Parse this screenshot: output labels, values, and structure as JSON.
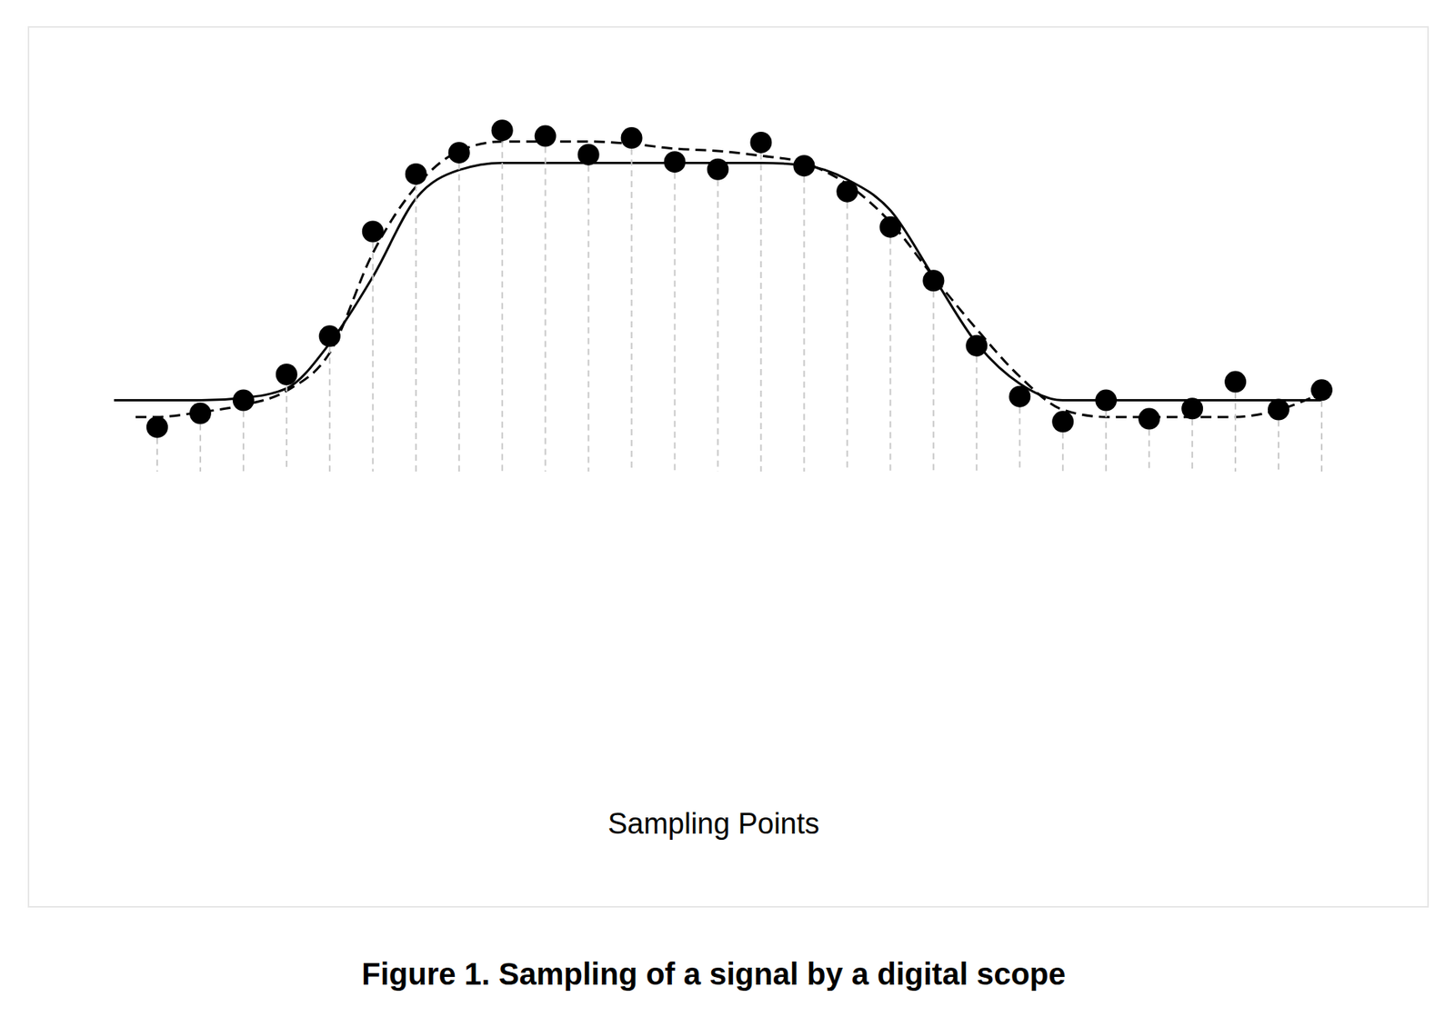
{
  "caption": "Figure 1. Sampling of a signal by a digital scope",
  "label": "Sampling Points",
  "chart_data": {
    "type": "line",
    "xlim": [
      -1.5,
      27.5
    ],
    "ylim": [
      -30,
      130
    ],
    "tick_labels": false,
    "grid": false,
    "series": [
      {
        "type": "line",
        "line_style": "solid",
        "color": "#000000",
        "x": [
          -1,
          0,
          1,
          2,
          3,
          4,
          5,
          6,
          7,
          8,
          9,
          10,
          11,
          12,
          13,
          14,
          15,
          16,
          17,
          18,
          19,
          20,
          21,
          22,
          23,
          24,
          25,
          26,
          27
        ],
        "values": [
          0,
          0,
          0,
          1,
          5,
          24,
          52,
          85,
          97,
          100,
          100,
          100,
          100,
          100,
          100,
          100,
          99,
          93,
          80,
          52,
          24,
          7,
          0,
          0,
          0,
          0,
          0,
          0,
          0
        ]
      },
      {
        "type": "line",
        "line_style": "dashed",
        "color": "#000000",
        "x": [
          -0.5,
          0,
          1,
          2,
          3,
          4,
          5,
          6,
          7,
          8,
          9,
          10,
          11,
          12,
          13,
          14,
          15,
          16,
          17,
          18,
          19,
          20,
          21,
          22,
          23,
          24,
          25,
          26,
          27
        ],
        "values": [
          -7,
          -7,
          -5,
          -2,
          4,
          20,
          62,
          90,
          105,
          109,
          109,
          109,
          108,
          106,
          105,
          103,
          100,
          91,
          75,
          52,
          30,
          10,
          -4,
          -7,
          -7,
          -7,
          -7,
          -4,
          3
        ]
      },
      {
        "type": "scatter",
        "marker": "circle",
        "color": "#000000",
        "x": [
          0,
          1,
          2,
          3,
          4,
          5,
          6,
          7,
          8,
          9,
          10,
          11,
          12,
          13,
          14,
          15,
          16,
          17,
          18,
          19,
          20,
          21,
          22,
          23,
          24,
          25,
          26,
          27
        ],
        "values": [
          -11.3,
          -5.5,
          0,
          10.9,
          27,
          71.1,
          95.3,
          104.3,
          113.7,
          111.3,
          103.5,
          110.5,
          100.4,
          97.3,
          108.6,
          98.8,
          87.9,
          73,
          50.4,
          23,
          1.6,
          -9,
          0,
          -7.8,
          -3.5,
          7.8,
          -3.9,
          4.3
        ]
      }
    ]
  }
}
